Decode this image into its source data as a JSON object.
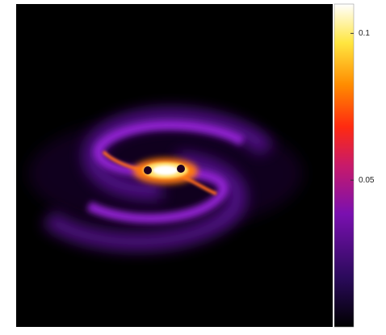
{
  "chart_data": {
    "type": "heatmap",
    "colorbar": {
      "lim": [
        0,
        0.11
      ],
      "ticks": [
        0.05,
        0.1
      ]
    }
  }
}
